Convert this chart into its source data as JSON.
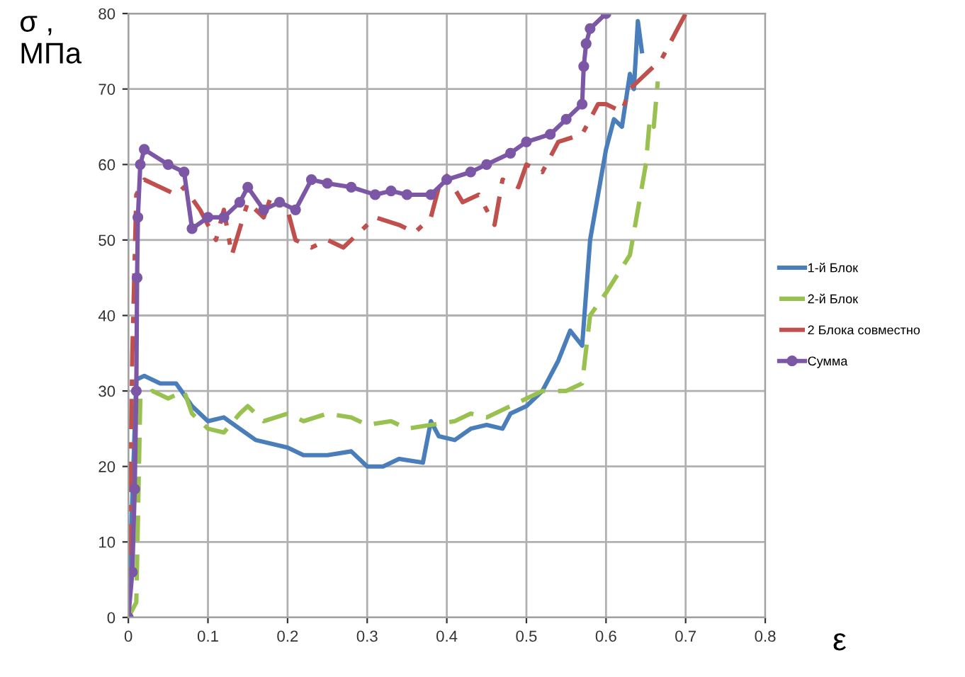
{
  "chart_data": {
    "type": "line",
    "ylabel": "σ ,\nМПа",
    "xlabel": "ε",
    "xlim": [
      0,
      0.8
    ],
    "xticks": [
      0,
      0.1,
      0.2,
      0.3,
      0.4,
      0.5,
      0.6,
      0.7,
      0.8
    ],
    "ylim": [
      0,
      80
    ],
    "yticks": [
      0,
      10,
      20,
      30,
      40,
      50,
      60,
      70,
      80
    ],
    "grid": true,
    "legend": "right",
    "series": [
      {
        "name": "1-й Блок",
        "color": "#4a7ebb",
        "line_style": "solid",
        "marker": "none",
        "x": [
          0,
          0.01,
          0.02,
          0.04,
          0.06,
          0.08,
          0.1,
          0.12,
          0.14,
          0.16,
          0.2,
          0.22,
          0.25,
          0.28,
          0.3,
          0.32,
          0.34,
          0.37,
          0.38,
          0.39,
          0.41,
          0.43,
          0.45,
          0.47,
          0.48,
          0.5,
          0.52,
          0.54,
          0.555,
          0.57,
          0.58,
          0.6,
          0.61,
          0.62,
          0.63,
          0.635,
          0.64,
          0.645
        ],
        "values": [
          0,
          31.5,
          32,
          31,
          31,
          28,
          26,
          26.5,
          25,
          23.5,
          22.5,
          21.5,
          21.5,
          22,
          20,
          20,
          21,
          20.5,
          26,
          24,
          23.5,
          25,
          25.5,
          25,
          27,
          28,
          30,
          34,
          38,
          36,
          50,
          62,
          66,
          65,
          72,
          70,
          79,
          75
        ]
      },
      {
        "name": "2-й Блок",
        "color": "#98c14f",
        "line_style": "dashed",
        "marker": "none",
        "x": [
          0,
          0.01,
          0.015,
          0.03,
          0.05,
          0.07,
          0.08,
          0.1,
          0.12,
          0.14,
          0.15,
          0.17,
          0.2,
          0.22,
          0.25,
          0.28,
          0.3,
          0.33,
          0.35,
          0.38,
          0.41,
          0.43,
          0.45,
          0.48,
          0.5,
          0.52,
          0.55,
          0.57,
          0.58,
          0.6,
          0.63,
          0.65,
          0.655,
          0.66,
          0.665
        ],
        "values": [
          0,
          2,
          29,
          30,
          29,
          30,
          27,
          25,
          24.5,
          27,
          28,
          26,
          27,
          26,
          27,
          26.5,
          25.5,
          26,
          25,
          25.5,
          26,
          27,
          26.5,
          28,
          29,
          30,
          30,
          31,
          40,
          43,
          48,
          60,
          66,
          65,
          71
        ]
      },
      {
        "name": "2 Блока совместно",
        "color": "#c0504d",
        "line_style": "dashdot",
        "marker": "none",
        "x": [
          0,
          0.005,
          0.01,
          0.02,
          0.04,
          0.06,
          0.07,
          0.09,
          0.1,
          0.11,
          0.12,
          0.13,
          0.15,
          0.17,
          0.18,
          0.2,
          0.21,
          0.23,
          0.25,
          0.27,
          0.29,
          0.31,
          0.34,
          0.36,
          0.38,
          0.39,
          0.4,
          0.42,
          0.44,
          0.46,
          0.47,
          0.49,
          0.5,
          0.52,
          0.54,
          0.57,
          0.58,
          0.59,
          0.6,
          0.62,
          0.63,
          0.65,
          0.67,
          0.69,
          0.7
        ],
        "values": [
          0,
          35,
          56,
          58,
          57,
          56,
          57,
          54,
          52,
          50,
          54,
          48,
          55,
          53,
          56,
          54,
          50,
          49,
          50,
          49,
          51,
          53,
          52,
          51,
          53,
          57,
          58.5,
          55,
          56,
          52,
          58,
          57,
          60,
          59,
          63,
          64,
          66,
          68,
          68,
          67,
          70,
          72,
          74,
          78,
          80
        ]
      },
      {
        "name": "Сумма",
        "color": "#7b57a6",
        "line_style": "solid",
        "marker": "circle",
        "x": [
          0,
          0.005,
          0.008,
          0.01,
          0.011,
          0.012,
          0.015,
          0.02,
          0.05,
          0.07,
          0.08,
          0.1,
          0.12,
          0.14,
          0.15,
          0.17,
          0.19,
          0.21,
          0.23,
          0.25,
          0.28,
          0.31,
          0.33,
          0.35,
          0.38,
          0.4,
          0.43,
          0.45,
          0.48,
          0.5,
          0.53,
          0.55,
          0.57,
          0.572,
          0.575,
          0.58,
          0.6
        ],
        "values": [
          0,
          6,
          17,
          30,
          45,
          53,
          60,
          62,
          60,
          59,
          51.5,
          53,
          53,
          55,
          57,
          54,
          55,
          54,
          58,
          57.5,
          57,
          56,
          56.5,
          56,
          56,
          58,
          59,
          60,
          61.5,
          63,
          64,
          66,
          68,
          73,
          76,
          78,
          80
        ]
      }
    ]
  }
}
